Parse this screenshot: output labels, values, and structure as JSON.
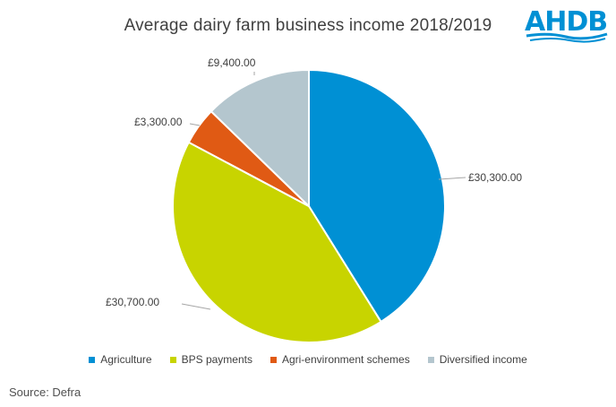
{
  "logo": {
    "text": "AHDB",
    "color": "#0090d4"
  },
  "source": "Source: Defra",
  "chart_data": {
    "type": "pie",
    "title": "Average dairy farm business income 2018/2019",
    "categories": [
      "Agriculture",
      "BPS payments",
      "Agri-environment schemes",
      "Diversified income"
    ],
    "values": [
      30300,
      30700,
      3300,
      9400
    ],
    "value_labels": [
      "£30,300.00",
      "£30,700.00",
      "£3,300.00",
      "£9,400.00"
    ],
    "colors": [
      "#0090d4",
      "#c8d400",
      "#e05a14",
      "#b4c6ce"
    ],
    "start_angle": "12 o'clock",
    "direction": "clockwise",
    "legend_position": "bottom"
  }
}
